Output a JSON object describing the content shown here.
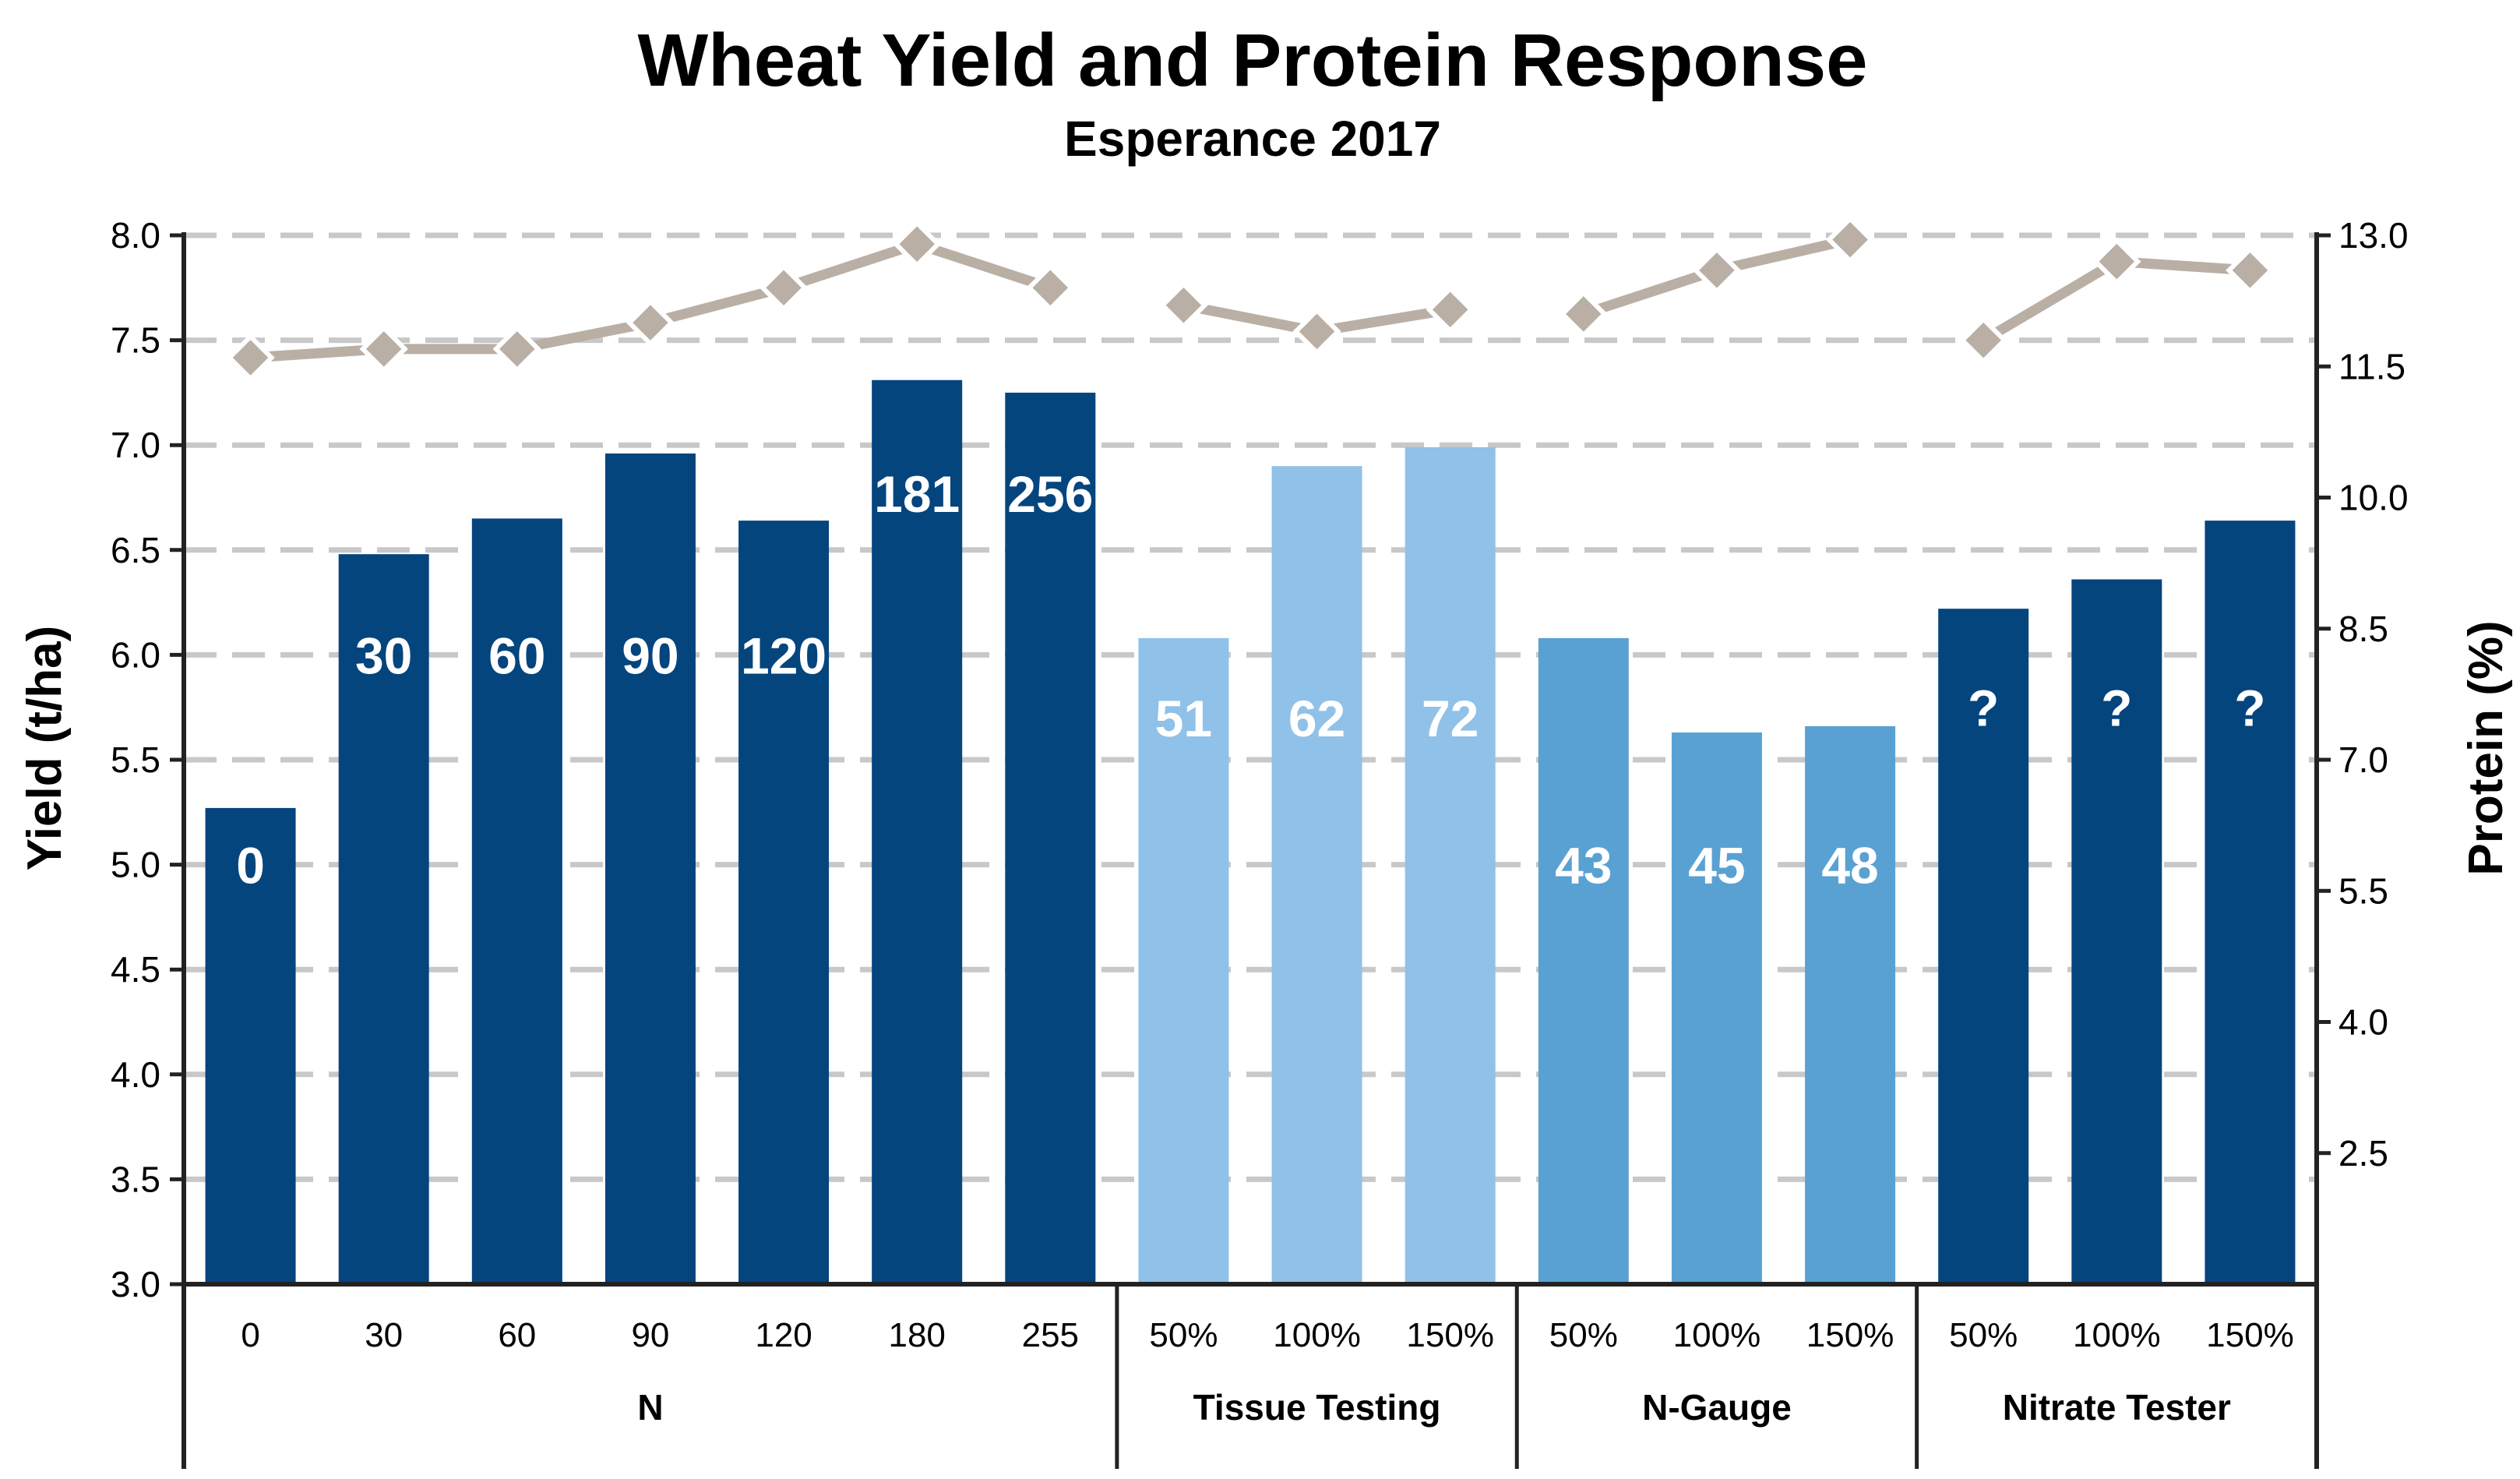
{
  "chart_data": {
    "type": "bar",
    "title": "Wheat Yield and Protein Response",
    "subtitle": "Esperance 2017",
    "ylabel": "Yield (t/ha)",
    "y2label": "Protein (%)",
    "ylim": [
      3.0,
      8.0
    ],
    "y2lim": [
      1.0,
      13.0
    ],
    "yticks": [
      "3.0",
      "3.5",
      "4.0",
      "4.5",
      "5.0",
      "5.5",
      "6.0",
      "6.5",
      "7.0",
      "7.5",
      "8.0"
    ],
    "y2ticks": [
      "2.5",
      "4.0",
      "5.5",
      "7.0",
      "8.5",
      "10.0",
      "11.5",
      "13.0"
    ],
    "grid": true,
    "categories": [
      "0",
      "30",
      "60",
      "90",
      "120",
      "180",
      "255",
      "50%",
      "100%",
      "150%",
      "50%",
      "100%",
      "150%",
      "50%",
      "100%",
      "150%"
    ],
    "groups": [
      {
        "name": "N",
        "count": 7
      },
      {
        "name": "Tissue Testing",
        "count": 3
      },
      {
        "name": "N-Gauge",
        "count": 3
      },
      {
        "name": "Nitrate Tester",
        "count": 3
      }
    ],
    "series": [
      {
        "type": "bar",
        "axis": "left",
        "values": [
          5.27,
          6.48,
          6.65,
          6.96,
          6.64,
          7.31,
          7.25,
          6.08,
          6.9,
          6.99,
          6.08,
          5.63,
          5.66,
          6.22,
          6.36,
          6.64
        ],
        "labels": [
          "0",
          "30",
          "60",
          "90",
          "120",
          "181",
          "256",
          "51",
          "62",
          "72",
          "43",
          "45",
          "48",
          "?",
          "?",
          "?"
        ],
        "label_values": [
          5.0,
          6.0,
          6.0,
          6.0,
          6.0,
          6.77,
          6.77,
          5.7,
          5.7,
          5.7,
          5.0,
          5.0,
          5.0,
          5.75,
          5.75,
          5.75
        ],
        "colors": [
          "#04457e",
          "#04457e",
          "#04457e",
          "#04457e",
          "#04457e",
          "#04457e",
          "#04457e",
          "#90c1e8",
          "#90c1e8",
          "#90c1e8",
          "#5aa1d3",
          "#5aa1d3",
          "#5aa1d3",
          "#04457e",
          "#04457e",
          "#04457e"
        ]
      },
      {
        "type": "line",
        "axis": "right",
        "values": [
          11.6,
          11.7,
          11.7,
          12.0,
          12.4,
          12.9,
          12.4,
          12.2,
          11.9,
          12.15,
          12.1,
          12.6,
          12.95,
          11.8,
          12.7,
          12.6
        ],
        "color": "#b9afa5",
        "line_segments": [
          [
            0,
            6
          ],
          [
            7,
            9
          ],
          [
            10,
            12
          ],
          [
            13,
            15
          ]
        ]
      }
    ]
  }
}
